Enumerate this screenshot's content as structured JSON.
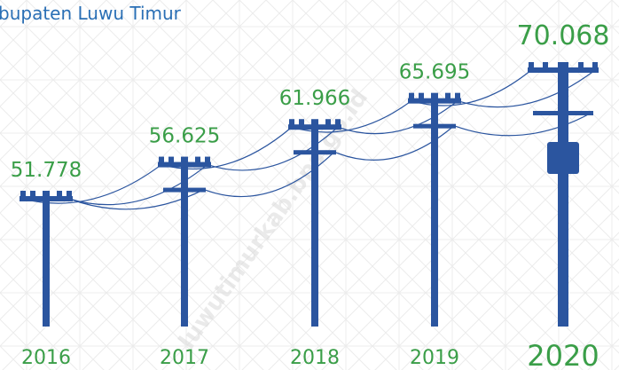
{
  "chart_data": {
    "type": "bar",
    "title": "bupaten Luwu Timur",
    "watermark": "luwutimurkab.bps.go.id",
    "categories": [
      "2016",
      "2017",
      "2018",
      "2019",
      "2020"
    ],
    "values": [
      51778,
      56625,
      61966,
      65695,
      70068
    ],
    "value_labels": [
      "51.778",
      "56.625",
      "61.966",
      "65.695",
      "70.068"
    ],
    "color": "#2b559f",
    "label_color": "#3a9e48"
  }
}
